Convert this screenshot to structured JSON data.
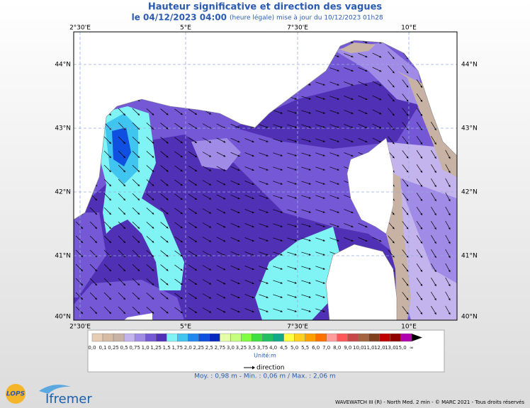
{
  "header": {
    "title": "Hauteur significative et direction des vagues",
    "date": "le 04/12/2023 04:00",
    "update": "(heure légale) mise à jour du 10/12/2023 01h28"
  },
  "map": {
    "lon_labels": [
      "2°30'E",
      "5°E",
      "7°30'E",
      "10°E"
    ],
    "lat_labels": [
      "44°N",
      "43°N",
      "42°N",
      "41°N",
      "40°N"
    ]
  },
  "legend": {
    "labels": [
      "0,0",
      "0,1",
      "0,25",
      "0,5",
      "0,75",
      "1,0",
      "1,25",
      "1,5",
      "1,75",
      "2,0",
      "2,25",
      "2,5",
      "2,75",
      "3,0",
      "3,25",
      "3,5",
      "3,75",
      "4,0",
      "4,5",
      "5,0",
      "5,5",
      "6,0",
      "7,0",
      "8,0",
      "9,0",
      "10,0",
      "11,0",
      "12,0",
      "13,0",
      "15,0",
      "∞"
    ],
    "colors": [
      "#e6cdb4",
      "#d6bca4",
      "#c8b2a4",
      "#c4b4ee",
      "#a08ce6",
      "#7458d6",
      "#5030b4",
      "#80f4f4",
      "#40c4f0",
      "#2088f0",
      "#1050e0",
      "#0828c0",
      "#e4ffa8",
      "#c4ff80",
      "#80ff40",
      "#40e040",
      "#20c060",
      "#10a888",
      "#ffff40",
      "#ffd020",
      "#ffa000",
      "#ff7000",
      "#ff9c9c",
      "#ff5858",
      "#c84848",
      "#a46440",
      "#804020",
      "#c00000",
      "#900000",
      "#b000b0"
    ],
    "unit": "Unité:m",
    "arrow_label": "direction"
  },
  "stats": "Moy. : 0,98 m   -   Min. : 0,06 m / Max. : 2,06 m",
  "logos": {
    "lops": "LOPS",
    "ifremer": "Ifremer"
  },
  "footer": "WAVEWATCH III (R) - North Med. 2 min - © MARC 2021 - Tous droits réservés"
}
